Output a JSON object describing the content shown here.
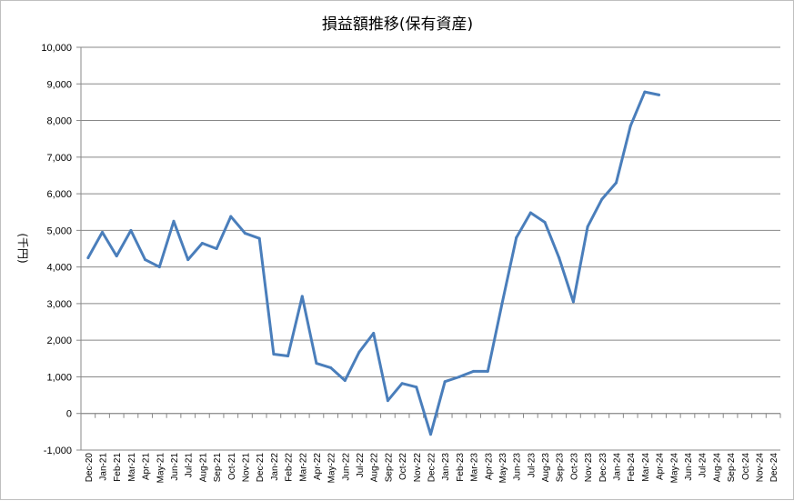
{
  "chart_data": {
    "type": "line",
    "title": "損益額推移(保有資産)",
    "xlabel": "",
    "ylabel": "(千円)",
    "ylim": [
      -1000,
      10000
    ],
    "ytick_step": 1000,
    "ytick_labels": [
      "-1,000",
      "0",
      "1,000",
      "2,000",
      "3,000",
      "4,000",
      "5,000",
      "6,000",
      "7,000",
      "8,000",
      "9,000",
      "10,000"
    ],
    "grid": true,
    "line_color": "#4a7ebb",
    "gridline_color": "#888888",
    "categories": [
      "Dec-20",
      "Jan-21",
      "Feb-21",
      "Mar-21",
      "Apr-21",
      "May-21",
      "Jun-21",
      "Jul-21",
      "Aug-21",
      "Sep-21",
      "Oct-21",
      "Nov-21",
      "Dec-21",
      "Jan-22",
      "Feb-22",
      "Mar-22",
      "Apr-22",
      "May-22",
      "Jun-22",
      "Jul-22",
      "Aug-22",
      "Sep-22",
      "Oct-22",
      "Nov-22",
      "Dec-22",
      "Jan-23",
      "Feb-23",
      "Mar-23",
      "Apr-23",
      "May-23",
      "Jun-23",
      "Jul-23",
      "Aug-23",
      "Sep-23",
      "Oct-23",
      "Nov-23",
      "Dec-23",
      "Jan-24",
      "Feb-24",
      "Mar-24",
      "Apr-24",
      "May-24",
      "Jun-24",
      "Jul-24",
      "Aug-24",
      "Sep-24",
      "Oct-24",
      "Nov-24",
      "Dec-24"
    ],
    "series": [
      {
        "values": [
          4250,
          4950,
          4300,
          5000,
          4200,
          4000,
          5250,
          4200,
          4650,
          4500,
          5380,
          4920,
          4780,
          1620,
          1570,
          3200,
          1370,
          1250,
          900,
          1680,
          2190,
          350,
          820,
          720,
          -570,
          870,
          1000,
          1150,
          1150,
          3000,
          4800,
          5480,
          5220,
          4250,
          3050,
          5100,
          5850,
          6300,
          7850,
          8780,
          8700,
          null,
          null,
          null,
          null,
          null,
          null,
          null,
          null
        ]
      }
    ]
  }
}
